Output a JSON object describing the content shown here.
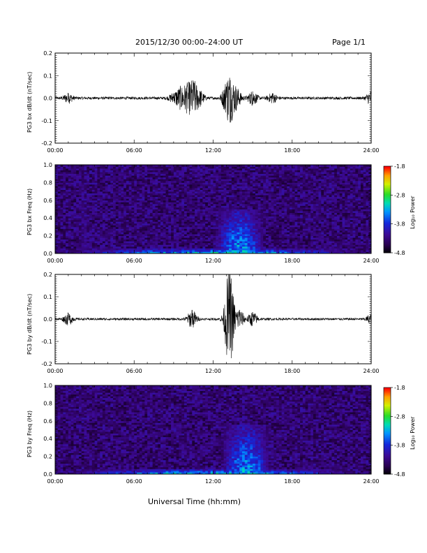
{
  "header": {
    "title": "2015/12/30  00:00–24:00 UT",
    "page": "Page 1/1"
  },
  "xaxis": {
    "title": "Universal Time (hh:mm)",
    "ticks": [
      "00:00",
      "06:00",
      "12:00",
      "18:00",
      "24:00"
    ]
  },
  "colorbar": {
    "label": "Log₁₀ Power",
    "ticks": [
      "-1.8",
      "-2.8",
      "-3.8",
      "-4.8"
    ]
  },
  "chart_data": [
    {
      "type": "line",
      "ylabel": "PG3 bx dB/dt (nT/sec)",
      "ylim": [
        -0.2,
        0.2
      ],
      "yticks": [
        "0.2",
        "0.1",
        "0.0",
        "-0.1",
        "-0.2"
      ],
      "xlim": [
        0,
        24
      ],
      "xunit": "hours UT",
      "grid": false,
      "events": [
        {
          "t": 1.0,
          "amp": 0.02
        },
        {
          "t": 9.0,
          "amp": 0.02
        },
        {
          "t": 9.5,
          "amp": 0.04
        },
        {
          "t": 10.0,
          "amp": 0.05
        },
        {
          "t": 10.5,
          "amp": 0.07
        },
        {
          "t": 11.0,
          "amp": 0.03
        },
        {
          "t": 13.0,
          "amp": 0.05
        },
        {
          "t": 13.3,
          "amp": 0.08
        },
        {
          "t": 13.8,
          "amp": 0.04
        },
        {
          "t": 15.0,
          "amp": 0.03
        },
        {
          "t": 16.5,
          "amp": 0.02
        },
        {
          "t": 24.0,
          "amp": 0.03
        }
      ],
      "baseline_amp": 0.006
    },
    {
      "type": "heatmap",
      "ylabel": "PG3 bx Freq (Hz)",
      "ylim": [
        0.0,
        1.0
      ],
      "yticks": [
        "1.0",
        "0.8",
        "0.6",
        "0.4",
        "0.2",
        "0.0"
      ],
      "xlim": [
        0,
        24
      ],
      "zlim": [
        -4.8,
        -1.8
      ],
      "zlabel": "Log₁₀ Power",
      "features": [
        {
          "t0": 12.0,
          "t1": 16.0,
          "f_max": 0.5,
          "power": -3.2
        },
        {
          "t0": 1.8,
          "t1": 2.6,
          "f_max": 1.0,
          "power": -4.2
        },
        {
          "t0": 0.0,
          "t1": 24.0,
          "f_max": 0.05,
          "power": -3.0
        }
      ]
    },
    {
      "type": "line",
      "ylabel": "PG3 by dB/dt (nT/sec)",
      "ylim": [
        -0.2,
        0.2
      ],
      "yticks": [
        "0.2",
        "0.1",
        "0.0",
        "-0.1",
        "-0.2"
      ],
      "xlim": [
        0,
        24
      ],
      "xunit": "hours UT",
      "grid": false,
      "events": [
        {
          "t": 1.0,
          "amp": 0.025
        },
        {
          "t": 10.4,
          "amp": 0.04
        },
        {
          "t": 13.2,
          "amp": 0.09
        },
        {
          "t": 13.25,
          "amp": -0.14
        },
        {
          "t": 14.0,
          "amp": 0.04
        },
        {
          "t": 15.0,
          "amp": 0.03
        },
        {
          "t": 24.0,
          "amp": 0.02
        }
      ],
      "baseline_amp": 0.005
    },
    {
      "type": "heatmap",
      "ylabel": "PG3 by Freq (Hz)",
      "ylim": [
        0.0,
        1.0
      ],
      "yticks": [
        "1.0",
        "0.8",
        "0.6",
        "0.4",
        "0.2",
        "0.0"
      ],
      "xlim": [
        0,
        24
      ],
      "zlim": [
        -4.8,
        -1.8
      ],
      "zlabel": "Log₁₀ Power",
      "features": [
        {
          "t0": 12.5,
          "t1": 16.5,
          "f_max": 0.55,
          "power": -3.2
        },
        {
          "t0": 0.0,
          "t1": 24.0,
          "f_max": 0.05,
          "power": -3.0
        }
      ]
    }
  ]
}
